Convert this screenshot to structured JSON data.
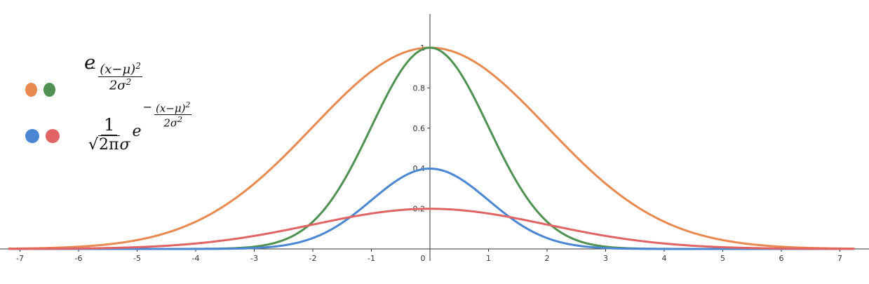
{
  "chart_data": {
    "type": "line",
    "title": "",
    "xlabel": "",
    "ylabel": "",
    "xlim": [
      -7.2,
      7.25
    ],
    "ylim": [
      0,
      1.17
    ],
    "x_ticks": [
      -7,
      -6,
      -5,
      -4,
      -3,
      -2,
      -1,
      0,
      1,
      2,
      3,
      4,
      5,
      6,
      7
    ],
    "y_ticks": [
      0.2,
      0.4,
      0.6,
      0.8,
      1
    ],
    "x_tick_labels": [
      "-7",
      "-6",
      "-5",
      "-4",
      "-3",
      "-2",
      "-1",
      "0",
      "1",
      "2",
      "3",
      "4",
      "5",
      "6",
      "7"
    ],
    "y_tick_labels": [
      "0.2",
      "0.4",
      "0.6",
      "0.8",
      "1"
    ],
    "grid": false,
    "series": [
      {
        "color": "#E8894F",
        "function": "unnormalized_gaussian",
        "mu": 0,
        "sigma": 2
      },
      {
        "color": "#4E9150",
        "function": "unnormalized_gaussian",
        "mu": 0,
        "sigma": 1
      },
      {
        "color": "#4A86D1",
        "function": "normalized_gaussian",
        "mu": 0,
        "sigma": 1
      },
      {
        "color": "#E06464",
        "function": "normalized_gaussian",
        "mu": 0,
        "sigma": 2
      }
    ]
  },
  "legend": {
    "placement": "top-left",
    "rows": [
      {
        "colors": [
          "#E8894F",
          "#4E9150"
        ],
        "formula": {
          "base": "e",
          "exp_num": "(x−μ)",
          "exp_num_power": "2",
          "exp_den": "2σ",
          "exp_den_power": "2"
        }
      },
      {
        "colors": [
          "#4A86D1",
          "#E06464"
        ],
        "formula": {
          "coef_num": "1",
          "coef_den_root": "2π",
          "coef_den_tail": "σ",
          "base": "e",
          "exp_num": "(x−μ)",
          "exp_num_power": "2",
          "exp_den": "2σ",
          "exp_den_power": "2"
        }
      }
    ]
  }
}
